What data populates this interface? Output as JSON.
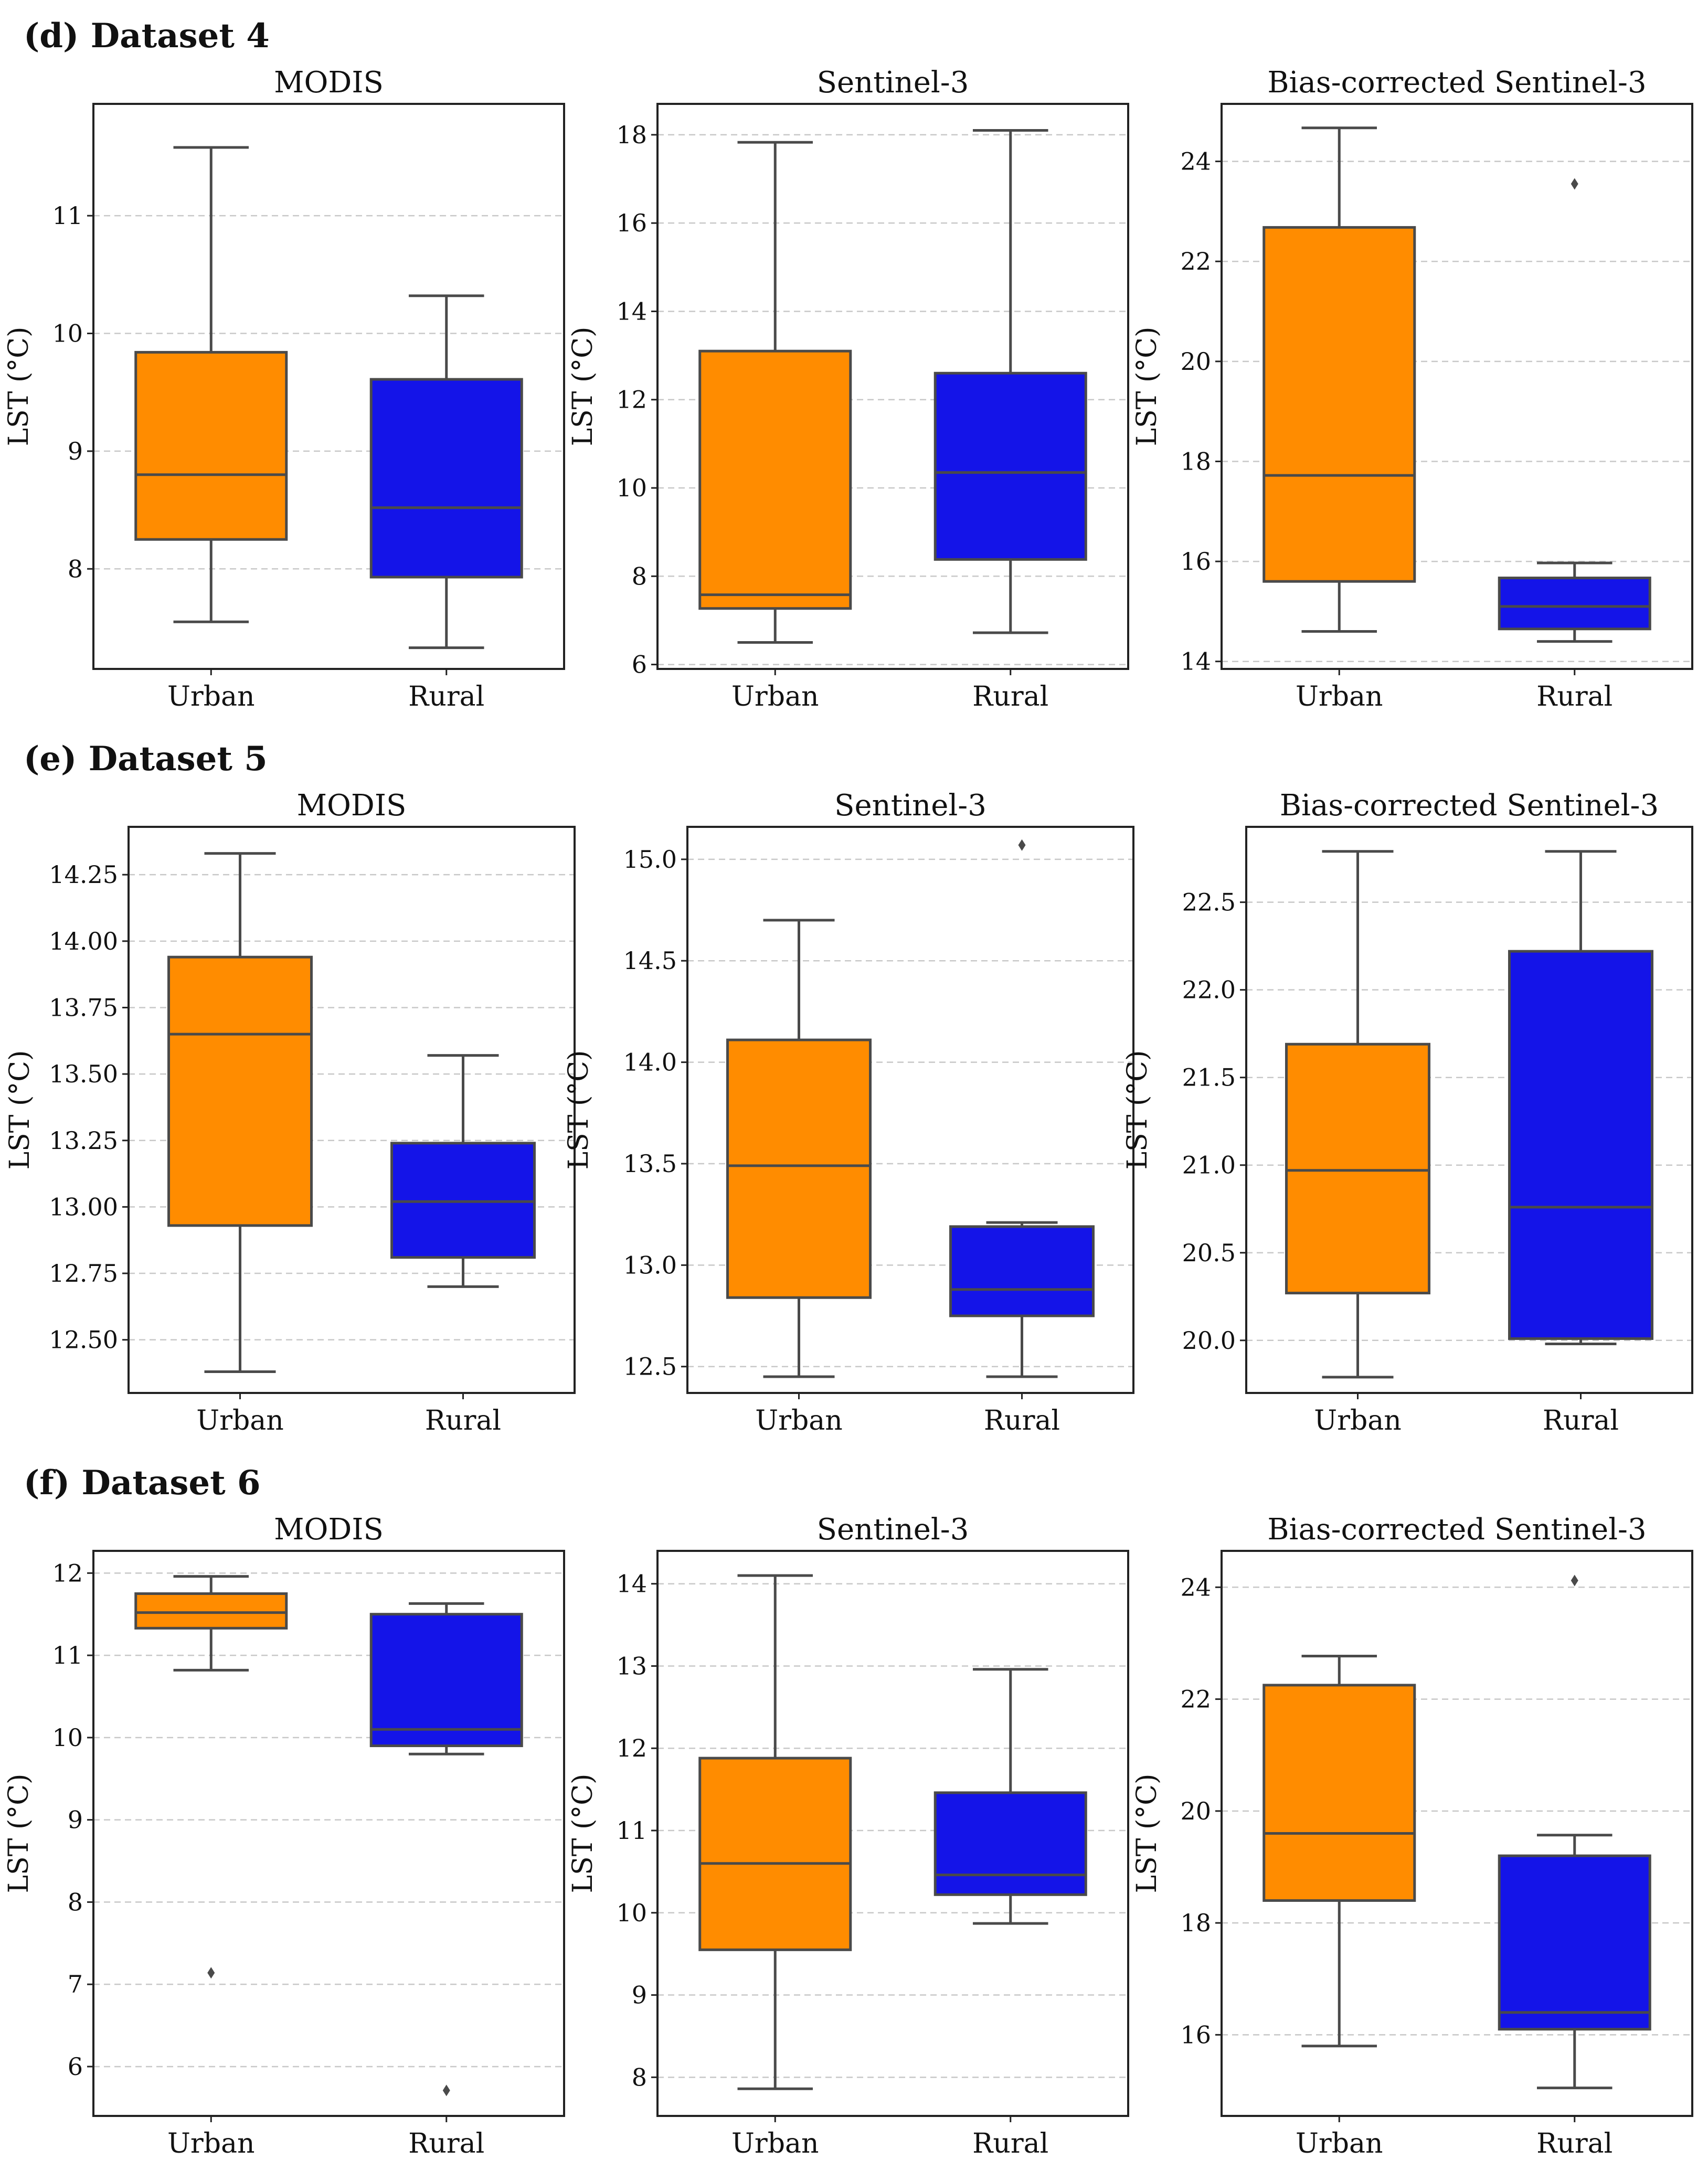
{
  "sections": [
    {
      "title": "(d) Dataset 4"
    },
    {
      "title": "(e) Dataset 5"
    },
    {
      "title": "(f) Dataset 6"
    }
  ],
  "colors": {
    "urban": "#ff8c00",
    "rural": "#1414e8",
    "line": "#4a4a4a",
    "grid": "#c8c8c8"
  },
  "chart_data": [
    {
      "type": "box",
      "section": "(d) Dataset 4",
      "title": "MODIS",
      "ylabel": "LST (°C)",
      "categories": [
        "Urban",
        "Rural"
      ],
      "ylim": [
        7.15,
        11.95
      ],
      "yticks": [
        8,
        9,
        10,
        11
      ],
      "tick_labels": [
        "8",
        "9",
        "10",
        "11"
      ],
      "grid": true,
      "boxes": [
        {
          "category": "Urban",
          "whislo": 7.55,
          "q1": 8.25,
          "median": 8.8,
          "q3": 9.84,
          "whishi": 11.58,
          "fliers": []
        },
        {
          "category": "Rural",
          "whislo": 7.33,
          "q1": 7.93,
          "median": 8.52,
          "q3": 9.61,
          "whishi": 10.32,
          "fliers": []
        }
      ]
    },
    {
      "type": "box",
      "section": "(d) Dataset 4",
      "title": "Sentinel-3",
      "ylabel": "LST (°C)",
      "categories": [
        "Urban",
        "Rural"
      ],
      "ylim": [
        5.9,
        18.7
      ],
      "yticks": [
        6,
        8,
        10,
        12,
        14,
        16,
        18
      ],
      "tick_labels": [
        "6",
        "8",
        "10",
        "12",
        "14",
        "16",
        "18"
      ],
      "grid": true,
      "boxes": [
        {
          "category": "Urban",
          "whislo": 6.5,
          "q1": 7.27,
          "median": 7.58,
          "q3": 13.1,
          "whishi": 17.83,
          "fliers": []
        },
        {
          "category": "Rural",
          "whislo": 6.72,
          "q1": 8.38,
          "median": 10.35,
          "q3": 12.6,
          "whishi": 18.1,
          "fliers": []
        }
      ]
    },
    {
      "type": "box",
      "section": "(d) Dataset 4",
      "title": "Bias-corrected Sentinel-3",
      "ylabel": "LST (°C)",
      "categories": [
        "Urban",
        "Rural"
      ],
      "ylim": [
        13.85,
        25.15
      ],
      "yticks": [
        14,
        16,
        18,
        20,
        22,
        24
      ],
      "tick_labels": [
        "14",
        "16",
        "18",
        "20",
        "22",
        "24"
      ],
      "grid": true,
      "boxes": [
        {
          "category": "Urban",
          "whislo": 14.6,
          "q1": 15.6,
          "median": 17.72,
          "q3": 22.68,
          "whishi": 24.67,
          "fliers": []
        },
        {
          "category": "Rural",
          "whislo": 14.4,
          "q1": 14.65,
          "median": 15.1,
          "q3": 15.67,
          "whishi": 15.97,
          "fliers": [
            23.55
          ]
        }
      ]
    },
    {
      "type": "box",
      "section": "(e) Dataset 5",
      "title": "MODIS",
      "ylabel": "LST (°C)",
      "categories": [
        "Urban",
        "Rural"
      ],
      "ylim": [
        12.3,
        14.43
      ],
      "yticks": [
        12.5,
        12.75,
        13.0,
        13.25,
        13.5,
        13.75,
        14.0,
        14.25
      ],
      "tick_labels": [
        "12.50",
        "12.75",
        "13.00",
        "13.25",
        "13.50",
        "13.75",
        "14.00",
        "14.25"
      ],
      "grid": true,
      "boxes": [
        {
          "category": "Urban",
          "whislo": 12.38,
          "q1": 12.93,
          "median": 13.65,
          "q3": 13.94,
          "whishi": 14.33,
          "fliers": []
        },
        {
          "category": "Rural",
          "whislo": 12.7,
          "q1": 12.81,
          "median": 13.02,
          "q3": 13.24,
          "whishi": 13.57,
          "fliers": []
        }
      ]
    },
    {
      "type": "box",
      "section": "(e) Dataset 5",
      "title": "Sentinel-3",
      "ylabel": "LST (°C)",
      "categories": [
        "Urban",
        "Rural"
      ],
      "ylim": [
        12.37,
        15.16
      ],
      "yticks": [
        12.5,
        13.0,
        13.5,
        14.0,
        14.5,
        15.0
      ],
      "tick_labels": [
        "12.5",
        "13.0",
        "13.5",
        "14.0",
        "14.5",
        "15.0"
      ],
      "grid": true,
      "boxes": [
        {
          "category": "Urban",
          "whislo": 12.45,
          "q1": 12.84,
          "median": 13.49,
          "q3": 14.11,
          "whishi": 14.7,
          "fliers": []
        },
        {
          "category": "Rural",
          "whislo": 12.45,
          "q1": 12.75,
          "median": 12.88,
          "q3": 13.19,
          "whishi": 13.21,
          "fliers": [
            15.07
          ]
        }
      ]
    },
    {
      "type": "box",
      "section": "(e) Dataset 5",
      "title": "Bias-corrected Sentinel-3",
      "ylabel": "LST (°C)",
      "categories": [
        "Urban",
        "Rural"
      ],
      "ylim": [
        19.7,
        22.93
      ],
      "yticks": [
        20.0,
        20.5,
        21.0,
        21.5,
        22.0,
        22.5
      ],
      "tick_labels": [
        "20.0",
        "20.5",
        "21.0",
        "21.5",
        "22.0",
        "22.5"
      ],
      "grid": true,
      "boxes": [
        {
          "category": "Urban",
          "whislo": 19.79,
          "q1": 20.27,
          "median": 20.97,
          "q3": 21.69,
          "whishi": 22.79,
          "fliers": []
        },
        {
          "category": "Rural",
          "whislo": 19.98,
          "q1": 20.01,
          "median": 20.76,
          "q3": 22.22,
          "whishi": 22.79,
          "fliers": []
        }
      ]
    },
    {
      "type": "box",
      "section": "(f) Dataset 6",
      "title": "MODIS",
      "ylabel": "LST (°C)",
      "categories": [
        "Urban",
        "Rural"
      ],
      "ylim": [
        5.4,
        12.27
      ],
      "yticks": [
        6,
        7,
        8,
        9,
        10,
        11,
        12
      ],
      "tick_labels": [
        "6",
        "7",
        "8",
        "9",
        "10",
        "11",
        "12"
      ],
      "grid": true,
      "boxes": [
        {
          "category": "Urban",
          "whislo": 10.82,
          "q1": 11.33,
          "median": 11.52,
          "q3": 11.75,
          "whishi": 11.96,
          "fliers": [
            7.14
          ]
        },
        {
          "category": "Rural",
          "whislo": 9.8,
          "q1": 9.9,
          "median": 10.1,
          "q3": 11.5,
          "whishi": 11.63,
          "fliers": [
            5.71
          ]
        }
      ]
    },
    {
      "type": "box",
      "section": "(f) Dataset 6",
      "title": "Sentinel-3",
      "ylabel": "LST (°C)",
      "categories": [
        "Urban",
        "Rural"
      ],
      "ylim": [
        7.53,
        14.4
      ],
      "yticks": [
        8,
        9,
        10,
        11,
        12,
        13,
        14
      ],
      "tick_labels": [
        "8",
        "9",
        "10",
        "11",
        "12",
        "13",
        "14"
      ],
      "grid": true,
      "boxes": [
        {
          "category": "Urban",
          "whislo": 7.86,
          "q1": 9.55,
          "median": 10.6,
          "q3": 11.88,
          "whishi": 14.1,
          "fliers": []
        },
        {
          "category": "Rural",
          "whislo": 9.87,
          "q1": 10.22,
          "median": 10.46,
          "q3": 11.46,
          "whishi": 12.96,
          "fliers": []
        }
      ]
    },
    {
      "type": "box",
      "section": "(f) Dataset 6",
      "title": "Bias-corrected Sentinel-3",
      "ylabel": "LST (°C)",
      "categories": [
        "Urban",
        "Rural"
      ],
      "ylim": [
        14.55,
        24.65
      ],
      "yticks": [
        16,
        18,
        20,
        22,
        24
      ],
      "tick_labels": [
        "16",
        "18",
        "20",
        "22",
        "24"
      ],
      "grid": true,
      "boxes": [
        {
          "category": "Urban",
          "whislo": 15.8,
          "q1": 18.4,
          "median": 19.6,
          "q3": 22.25,
          "whishi": 22.77,
          "fliers": []
        },
        {
          "category": "Rural",
          "whislo": 15.05,
          "q1": 16.1,
          "median": 16.4,
          "q3": 19.2,
          "whishi": 19.57,
          "fliers": [
            24.12
          ]
        }
      ]
    }
  ]
}
